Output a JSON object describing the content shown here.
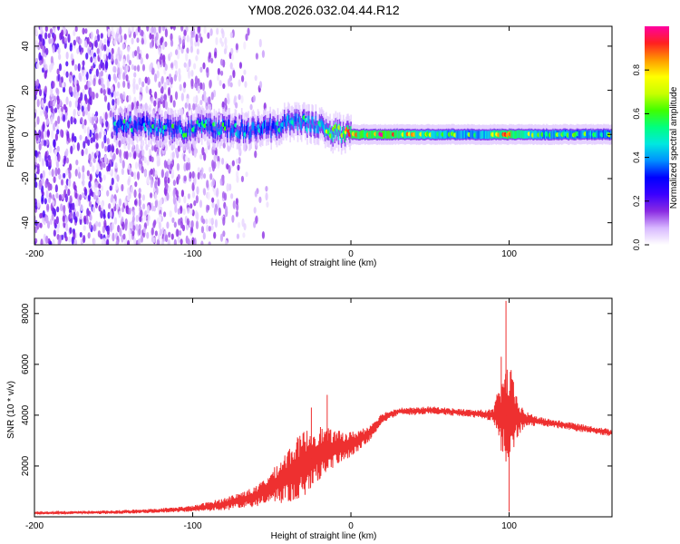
{
  "title": "YM08.2026.032.04.44.R12",
  "chart_data": [
    {
      "type": "heatmap",
      "name": "spectrogram",
      "xlabel": "Height of straight line (km)",
      "ylabel": "Frequency (Hz)",
      "xlim": [
        -200,
        165
      ],
      "ylim": [
        -50,
        49
      ],
      "xticks": [
        -200,
        -100,
        0,
        100
      ],
      "yticks": [
        -40,
        -20,
        0,
        20,
        40
      ],
      "colorbar": {
        "label": "Normalized spectral amplitude",
        "range": [
          0.0,
          1.0
        ],
        "ticks": [
          0.0,
          0.2,
          0.4,
          0.6,
          0.8
        ],
        "colors": [
          "#ffffff",
          "#d8b8ff",
          "#8a2be2",
          "#3a00ff",
          "#0000ff",
          "#0090ff",
          "#00e8e0",
          "#00ff80",
          "#40ff00",
          "#c8ff00",
          "#ffff00",
          "#ff9900",
          "#ff2020",
          "#ff00a0"
        ]
      },
      "noise_floor_region_x": [
        -200,
        -70
      ],
      "ridge": [
        {
          "x": -150,
          "f": 4,
          "amp": 0.45
        },
        {
          "x": -130,
          "f": 4,
          "amp": 0.45
        },
        {
          "x": -110,
          "f": 2,
          "amp": 0.5
        },
        {
          "x": -90,
          "f": 3,
          "amp": 0.5
        },
        {
          "x": -70,
          "f": 2,
          "amp": 0.5
        },
        {
          "x": -50,
          "f": 3,
          "amp": 0.5
        },
        {
          "x": -40,
          "f": 5,
          "amp": 0.55
        },
        {
          "x": -30,
          "f": 6,
          "amp": 0.55
        },
        {
          "x": -20,
          "f": 3,
          "amp": 0.6
        },
        {
          "x": -10,
          "f": 1,
          "amp": 0.7
        },
        {
          "x": 0,
          "f": 0,
          "amp": 0.85
        },
        {
          "x": 20,
          "f": 0,
          "amp": 0.9
        },
        {
          "x": 40,
          "f": 0,
          "amp": 0.75
        },
        {
          "x": 60,
          "f": 0,
          "amp": 0.6
        },
        {
          "x": 80,
          "f": 0,
          "amp": 0.55
        },
        {
          "x": 92,
          "f": 0,
          "amp": 0.8
        },
        {
          "x": 100,
          "f": 0,
          "amp": 0.85
        },
        {
          "x": 120,
          "f": 0,
          "amp": 0.6
        },
        {
          "x": 140,
          "f": 0,
          "amp": 0.55
        },
        {
          "x": 165,
          "f": 0,
          "amp": 0.55
        }
      ]
    },
    {
      "type": "line",
      "name": "snr",
      "xlabel": "Height of straight line (km)",
      "ylabel": "SNR (10 * v/v)",
      "xlim": [
        -200,
        165
      ],
      "ylim": [
        0,
        8600
      ],
      "xticks": [
        -200,
        -100,
        0,
        100
      ],
      "yticks": [
        2000,
        4000,
        6000,
        8000
      ],
      "series": [
        {
          "name": "SNR",
          "color": "#ee3030",
          "x": [
            -200,
            -150,
            -120,
            -100,
            -80,
            -60,
            -50,
            -40,
            -30,
            -20,
            -10,
            0,
            10,
            20,
            30,
            40,
            50,
            60,
            70,
            80,
            90,
            95,
            100,
            105,
            110,
            120,
            130,
            140,
            150,
            165
          ],
          "y": [
            150,
            180,
            250,
            320,
            500,
            800,
            1200,
            1600,
            2100,
            2500,
            2700,
            2850,
            3200,
            3900,
            4150,
            4150,
            4200,
            4150,
            4100,
            4050,
            4000,
            4000,
            3950,
            3900,
            3850,
            3750,
            3650,
            3550,
            3450,
            3300
          ],
          "noise_amplitude": [
            50,
            70,
            90,
            120,
            250,
            400,
            600,
            1100,
            1300,
            1100,
            700,
            500,
            350,
            200,
            150,
            150,
            150,
            150,
            150,
            160,
            250,
            1500,
            2200,
            800,
            300,
            170,
            160,
            160,
            150,
            140
          ],
          "spikes": [
            {
              "x": 98,
              "y": 8500
            },
            {
              "x": 95,
              "y": 6300
            },
            {
              "x": 100,
              "y": 200
            },
            {
              "x": -15,
              "y": 4800
            },
            {
              "x": -25,
              "y": 4300
            }
          ]
        }
      ]
    }
  ]
}
